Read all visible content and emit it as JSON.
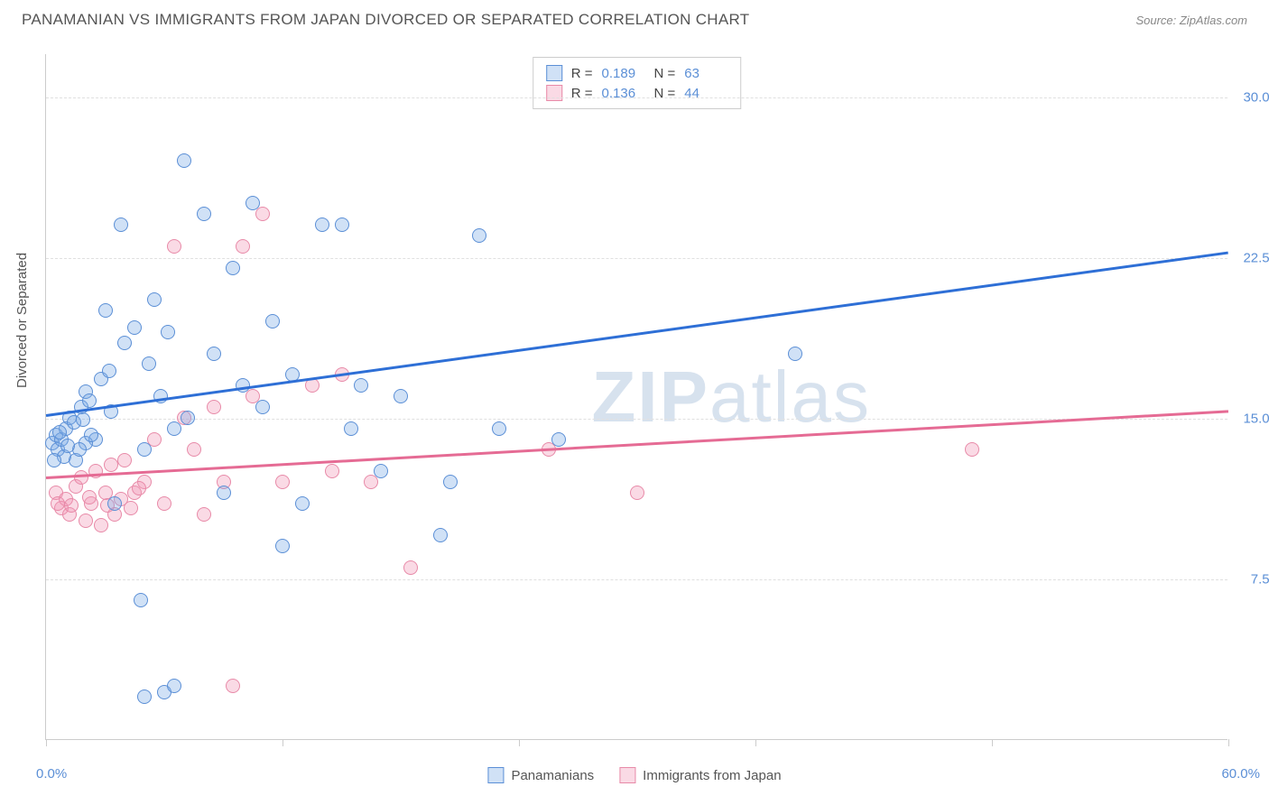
{
  "header": {
    "title": "PANAMANIAN VS IMMIGRANTS FROM JAPAN DIVORCED OR SEPARATED CORRELATION CHART",
    "source": "Source: ZipAtlas.com"
  },
  "chart": {
    "type": "scatter",
    "yaxis_label": "Divorced or Separated",
    "background_color": "#ffffff",
    "grid_color": "#e0e0e0",
    "axis_color": "#cccccc",
    "tick_label_color": "#5b8fd6",
    "axis_label_color": "#555555",
    "xlim": [
      0,
      60
    ],
    "ylim": [
      0,
      32
    ],
    "ytick_step": 7.5,
    "yticks": [
      {
        "value": 7.5,
        "label": "7.5%"
      },
      {
        "value": 15.0,
        "label": "15.0%"
      },
      {
        "value": 22.5,
        "label": "22.5%"
      },
      {
        "value": 30.0,
        "label": "30.0%"
      }
    ],
    "xticks": [
      0,
      12,
      24,
      36,
      48,
      60
    ],
    "xaxis_min_label": "0.0%",
    "xaxis_max_label": "60.0%",
    "marker_radius": 8,
    "marker_border_width": 1.2,
    "marker_fill_opacity": 0.35,
    "trendline_width": 2.5,
    "watermark": "ZIPatlas"
  },
  "series": {
    "panamanians": {
      "label": "Panamanians",
      "color_fill": "rgba(120,170,230,0.35)",
      "color_border": "#5b8fd6",
      "trend_color": "#2e6fd6",
      "R": "0.189",
      "N": "63",
      "trend": {
        "x1": 0,
        "y1": 15.2,
        "x2": 60,
        "y2": 22.8
      },
      "points": [
        [
          0.3,
          13.8
        ],
        [
          0.5,
          14.2
        ],
        [
          0.6,
          13.5
        ],
        [
          0.8,
          14.0
        ],
        [
          0.9,
          13.2
        ],
        [
          1.0,
          14.5
        ],
        [
          1.2,
          15.0
        ],
        [
          1.4,
          14.8
        ],
        [
          1.5,
          13.0
        ],
        [
          1.8,
          15.5
        ],
        [
          2.0,
          16.2
        ],
        [
          2.2,
          15.8
        ],
        [
          2.5,
          14.0
        ],
        [
          2.8,
          16.8
        ],
        [
          3.0,
          20.0
        ],
        [
          3.2,
          17.2
        ],
        [
          3.5,
          11.0
        ],
        [
          3.8,
          24.0
        ],
        [
          4.0,
          18.5
        ],
        [
          4.5,
          19.2
        ],
        [
          4.8,
          6.5
        ],
        [
          5.0,
          13.5
        ],
        [
          5.2,
          17.5
        ],
        [
          5.5,
          20.5
        ],
        [
          5.8,
          16.0
        ],
        [
          6.0,
          2.2
        ],
        [
          6.2,
          19.0
        ],
        [
          6.5,
          14.5
        ],
        [
          7.0,
          27.0
        ],
        [
          7.2,
          15.0
        ],
        [
          8.0,
          24.5
        ],
        [
          8.5,
          18.0
        ],
        [
          9.0,
          11.5
        ],
        [
          9.5,
          22.0
        ],
        [
          10.0,
          16.5
        ],
        [
          10.5,
          25.0
        ],
        [
          11.0,
          15.5
        ],
        [
          11.5,
          19.5
        ],
        [
          12.0,
          9.0
        ],
        [
          12.5,
          17.0
        ],
        [
          13.0,
          11.0
        ],
        [
          14.0,
          24.0
        ],
        [
          15.0,
          24.0
        ],
        [
          15.5,
          14.5
        ],
        [
          16.0,
          16.5
        ],
        [
          17.0,
          12.5
        ],
        [
          18.0,
          16.0
        ],
        [
          20.0,
          9.5
        ],
        [
          20.5,
          12.0
        ],
        [
          22.0,
          23.5
        ],
        [
          23.0,
          14.5
        ],
        [
          26.0,
          14.0
        ],
        [
          38.0,
          18.0
        ],
        [
          5.0,
          2.0
        ],
        [
          6.5,
          2.5
        ],
        [
          2.0,
          13.8
        ],
        [
          2.3,
          14.2
        ],
        [
          1.7,
          13.5
        ],
        [
          0.4,
          13.0
        ],
        [
          0.7,
          14.3
        ],
        [
          1.1,
          13.7
        ],
        [
          1.9,
          14.9
        ],
        [
          3.3,
          15.3
        ]
      ]
    },
    "immigrants_japan": {
      "label": "Immigrants from Japan",
      "color_fill": "rgba(240,150,180,0.35)",
      "color_border": "#e88aa8",
      "trend_color": "#e56b94",
      "R": "0.136",
      "N": "44",
      "trend": {
        "x1": 0,
        "y1": 12.3,
        "x2": 60,
        "y2": 15.4
      },
      "points": [
        [
          0.5,
          11.5
        ],
        [
          0.8,
          10.8
        ],
        [
          1.0,
          11.2
        ],
        [
          1.2,
          10.5
        ],
        [
          1.5,
          11.8
        ],
        [
          1.8,
          12.2
        ],
        [
          2.0,
          10.2
        ],
        [
          2.3,
          11.0
        ],
        [
          2.5,
          12.5
        ],
        [
          2.8,
          10.0
        ],
        [
          3.0,
          11.5
        ],
        [
          3.3,
          12.8
        ],
        [
          3.5,
          10.5
        ],
        [
          3.8,
          11.2
        ],
        [
          4.0,
          13.0
        ],
        [
          4.3,
          10.8
        ],
        [
          4.5,
          11.5
        ],
        [
          5.0,
          12.0
        ],
        [
          5.5,
          14.0
        ],
        [
          6.0,
          11.0
        ],
        [
          6.5,
          23.0
        ],
        [
          7.0,
          15.0
        ],
        [
          7.5,
          13.5
        ],
        [
          8.0,
          10.5
        ],
        [
          8.5,
          15.5
        ],
        [
          9.0,
          12.0
        ],
        [
          9.5,
          2.5
        ],
        [
          10.0,
          23.0
        ],
        [
          10.5,
          16.0
        ],
        [
          11.0,
          24.5
        ],
        [
          12.0,
          12.0
        ],
        [
          13.5,
          16.5
        ],
        [
          14.5,
          12.5
        ],
        [
          15.0,
          17.0
        ],
        [
          16.5,
          12.0
        ],
        [
          18.5,
          8.0
        ],
        [
          25.5,
          13.5
        ],
        [
          30.0,
          11.5
        ],
        [
          47.0,
          13.5
        ],
        [
          2.2,
          11.3
        ],
        [
          3.1,
          10.9
        ],
        [
          4.7,
          11.7
        ],
        [
          1.3,
          10.9
        ],
        [
          0.6,
          11.0
        ]
      ]
    }
  },
  "legend": {
    "R_label": "R =",
    "N_label": "N ="
  }
}
